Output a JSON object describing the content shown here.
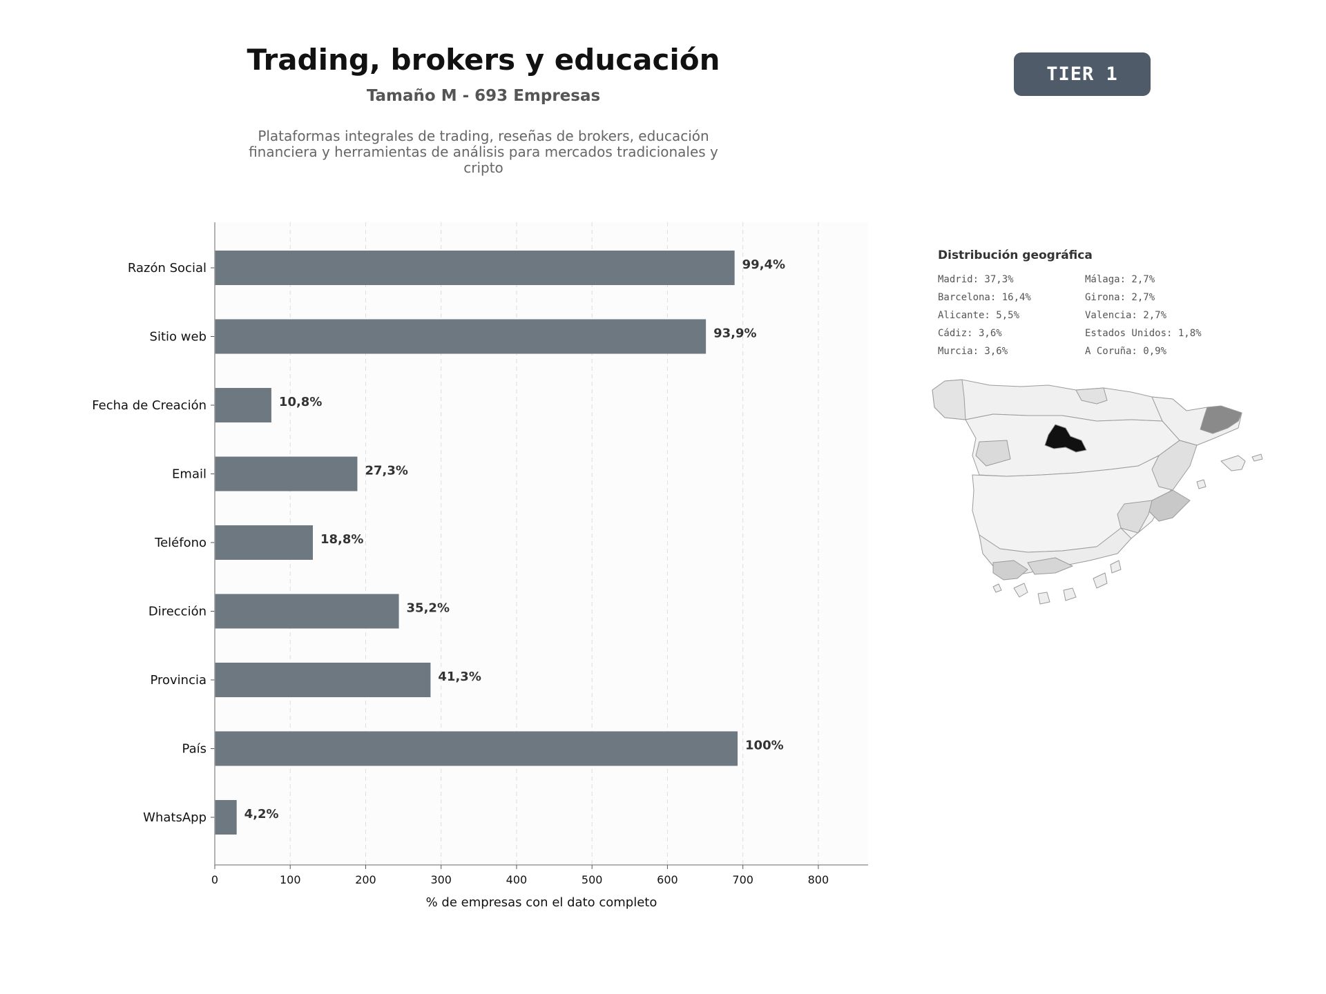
{
  "header": {
    "title": "Trading, brokers y educación",
    "subtitle": "Tamaño M - 693 Empresas",
    "description": "Plataformas integrales de trading, reseñas de brokers, educación financiera y herramientas de análisis para mercados tradicionales y cripto"
  },
  "badge": {
    "label": "TIER 1",
    "color": "#4f5b68"
  },
  "chart_data": {
    "type": "bar",
    "orientation": "horizontal",
    "categories": [
      "Razón Social",
      "Sitio web",
      "Fecha de Creación",
      "Email",
      "Teléfono",
      "Dirección",
      "Provincia",
      "País",
      "WhatsApp"
    ],
    "values": [
      689,
      651,
      75,
      189,
      130,
      244,
      286,
      693,
      29
    ],
    "data_labels": [
      "99,4%",
      "93,9%",
      "10,8%",
      "27,3%",
      "18,8%",
      "35,2%",
      "41,3%",
      "100%",
      "4,2%"
    ],
    "xlabel": "% de empresas con el dato completo",
    "xticks": [
      0,
      100,
      200,
      300,
      400,
      500,
      600,
      700,
      800
    ],
    "xlim": [
      0,
      866
    ],
    "grid": "vertical dashed",
    "bar_color": "#6e7881"
  },
  "geo": {
    "title": "Distribución geográfica",
    "items": [
      "Madrid: 37,3%",
      "Málaga: 2,7%",
      "Barcelona: 16,4%",
      "Girona: 2,7%",
      "Alicante: 5,5%",
      "Valencia: 2,7%",
      "Cádiz: 3,6%",
      "Estados Unidos: 1,8%",
      "Murcia: 3,6%",
      "A Coruña: 0,9%"
    ]
  }
}
